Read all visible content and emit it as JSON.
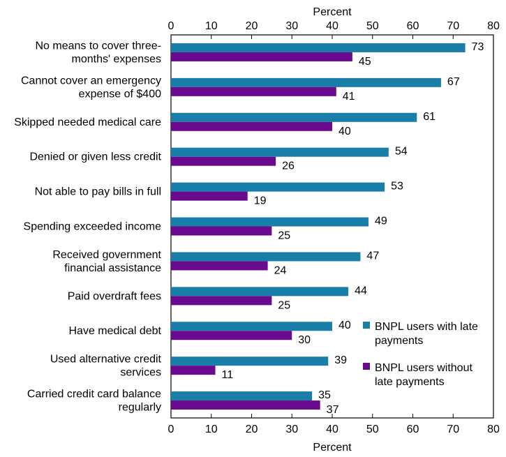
{
  "chart_data": {
    "type": "bar",
    "orientation": "horizontal",
    "title": "",
    "xlabel": "Percent",
    "ylabel": "",
    "xlim": [
      0,
      80
    ],
    "xticks": [
      0,
      10,
      20,
      30,
      40,
      50,
      60,
      70,
      80
    ],
    "grid": false,
    "legend_position": "bottom-right",
    "categories": [
      [
        "No means to cover three-",
        "months' expenses"
      ],
      [
        "Cannot cover an emergency",
        "expense of $400"
      ],
      [
        "Skipped needed medical care"
      ],
      [
        "Denied or given less credit"
      ],
      [
        "Not able to pay bills in full"
      ],
      [
        "Spending exceeded income"
      ],
      [
        "Received government",
        "financial assistance"
      ],
      [
        "Paid overdraft fees"
      ],
      [
        "Have medical debt"
      ],
      [
        "Used alternative credit",
        "services"
      ],
      [
        "Carried credit card balance",
        "regularly"
      ]
    ],
    "series": [
      {
        "name": "BNPL users with late payments",
        "legend_lines": [
          "BNPL users with late",
          "payments"
        ],
        "color": "#1a7fa8",
        "values": [
          73,
          67,
          61,
          54,
          53,
          49,
          47,
          44,
          40,
          39,
          35
        ]
      },
      {
        "name": "BNPL users without late payments",
        "legend_lines": [
          "BNPL users without",
          "late payments"
        ],
        "color": "#6a0a8e",
        "values": [
          45,
          41,
          40,
          26,
          19,
          25,
          24,
          25,
          30,
          11,
          37
        ]
      }
    ]
  }
}
